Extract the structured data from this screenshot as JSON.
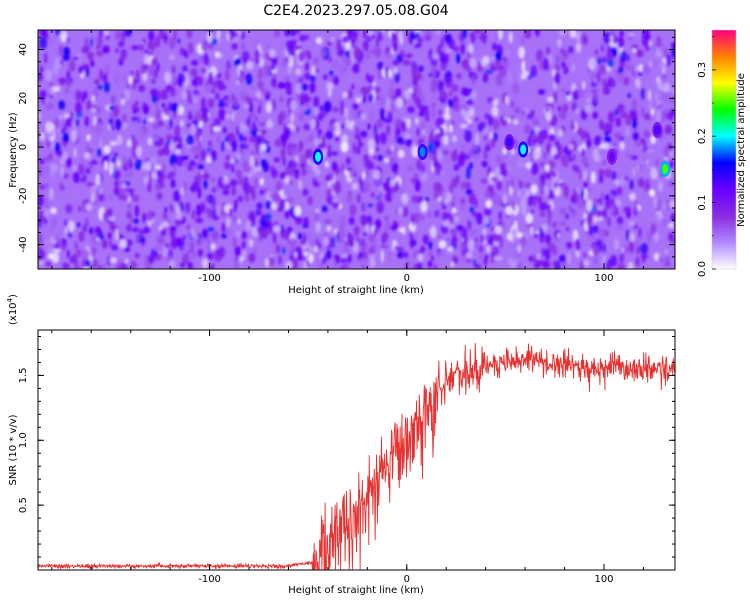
{
  "figure": {
    "title": "C2E4.2023.297.05.08.G04"
  },
  "chart_data": [
    {
      "type": "heatmap",
      "xlabel": "Height of straight line (km)",
      "ylabel": "Frequency (Hz)",
      "xlim": [
        -187,
        136
      ],
      "ylim": [
        -50,
        48
      ],
      "xticks": [
        -100,
        0,
        100
      ],
      "xtick_labels": [
        "-100",
        "0",
        "100"
      ],
      "yticks": [
        -40,
        -20,
        0,
        20,
        40
      ],
      "ytick_labels": [
        "-40",
        "-20",
        "0",
        "20",
        "40"
      ],
      "colorbar": {
        "label": "Normalized spectral amplitude",
        "range": [
          0,
          0.36
        ],
        "ticks": [
          0,
          0.1,
          0.2,
          0.3
        ],
        "tick_labels": [
          "0.0",
          "0.1",
          "0.2",
          "0.3"
        ],
        "colormap": [
          "#ffffff",
          "#b088ff",
          "#8a2be2",
          "#6a00ff",
          "#0000ff",
          "#00ffff",
          "#00ff00",
          "#ffff00",
          "#ff8000",
          "#ff0080"
        ]
      },
      "background_level": 0.05,
      "hotspots": [
        {
          "x": -45,
          "y": -4,
          "value": 0.2
        },
        {
          "x": 8,
          "y": -2,
          "value": 0.18
        },
        {
          "x": 59,
          "y": -1,
          "value": 0.2
        },
        {
          "x": 52,
          "y": 2,
          "value": 0.14
        },
        {
          "x": 131,
          "y": -9,
          "value": 0.25
        },
        {
          "x": 127,
          "y": 7,
          "value": 0.13
        },
        {
          "x": 104,
          "y": -4,
          "value": 0.12
        }
      ],
      "grid": false
    },
    {
      "type": "line",
      "xlabel": "Height of straight line (km)",
      "ylabel": "SNR (10 * v/v)",
      "ymultiplier": "(x10",
      "ymultiplier_exp": "4",
      "ymultiplier_close": ")",
      "xlim": [
        -187,
        136
      ],
      "ylim": [
        0,
        1.85
      ],
      "xticks": [
        -100,
        0,
        100
      ],
      "xtick_labels": [
        "-100",
        "0",
        "100"
      ],
      "yticks": [
        0.5,
        1.0,
        1.5
      ],
      "ytick_labels": [
        "0.5",
        "1.0",
        "1.5"
      ],
      "color": "#e8302f",
      "trend": [
        {
          "x": -187,
          "y": 0.03
        },
        {
          "x": -60,
          "y": 0.03
        },
        {
          "x": -47,
          "y": 0.06
        },
        {
          "x": -41,
          "y": 0.25
        },
        {
          "x": -35,
          "y": 0.35
        },
        {
          "x": -28,
          "y": 0.45
        },
        {
          "x": -20,
          "y": 0.6
        },
        {
          "x": -10,
          "y": 0.85
        },
        {
          "x": 0,
          "y": 1.05
        },
        {
          "x": 10,
          "y": 1.3
        },
        {
          "x": 20,
          "y": 1.45
        },
        {
          "x": 35,
          "y": 1.55
        },
        {
          "x": 60,
          "y": 1.62
        },
        {
          "x": 90,
          "y": 1.56
        },
        {
          "x": 136,
          "y": 1.55
        }
      ],
      "grid": false
    }
  ]
}
